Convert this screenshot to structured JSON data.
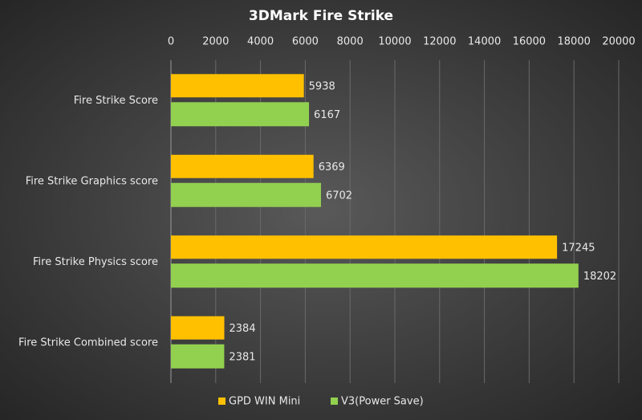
{
  "chart_data": {
    "type": "bar",
    "title": "3DMark Fire Strike",
    "categories": [
      "Fire Strike Score",
      "Fire Strike Graphics score",
      "Fire Strike Physics score",
      "Fire Strike Combined score"
    ],
    "series": [
      {
        "name": "GPD WIN Mini",
        "color": "#ffc000",
        "values": [
          5938,
          6369,
          17245,
          2384
        ]
      },
      {
        "name": "V3(Power Save)",
        "color": "#92d050",
        "values": [
          6167,
          6702,
          18202,
          2381
        ]
      }
    ],
    "xlim": [
      0,
      20000
    ],
    "xticks": [
      0,
      2000,
      4000,
      6000,
      8000,
      10000,
      12000,
      14000,
      16000,
      18000,
      20000
    ],
    "grid": true,
    "legend": "bottom"
  }
}
